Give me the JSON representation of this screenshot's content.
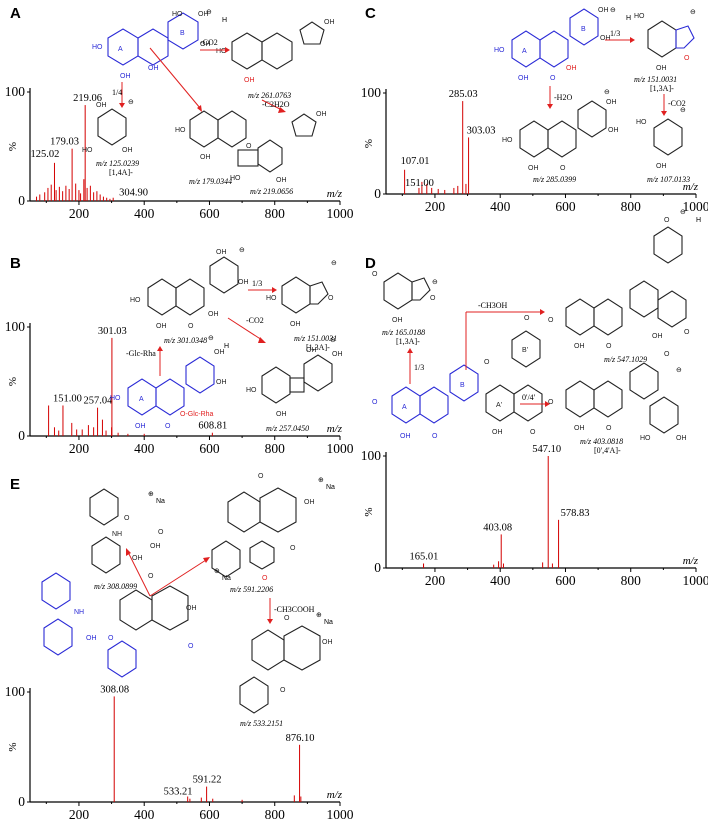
{
  "chart_data": [
    {
      "panel": "A",
      "type": "bar",
      "xlabel": "m/z",
      "ylabel": "%",
      "xlim": [
        50,
        1000
      ],
      "ylim": [
        0,
        100
      ],
      "xticks": [
        200,
        400,
        600,
        800,
        1000
      ],
      "yticks": [
        0,
        100
      ],
      "peaks": [
        {
          "x": 125.02,
          "y": 35,
          "label": "125.02"
        },
        {
          "x": 179.03,
          "y": 48,
          "label": "179.03"
        },
        {
          "x": 219.06,
          "y": 88,
          "label": "219.06"
        },
        {
          "x": 304.9,
          "y": 3,
          "label": "304.90"
        }
      ],
      "noise": [
        [
          70,
          4
        ],
        [
          80,
          6
        ],
        [
          95,
          8
        ],
        [
          105,
          12
        ],
        [
          115,
          15
        ],
        [
          130,
          10
        ],
        [
          140,
          13
        ],
        [
          150,
          9
        ],
        [
          160,
          14
        ],
        [
          170,
          11
        ],
        [
          190,
          16
        ],
        [
          200,
          10
        ],
        [
          205,
          7
        ],
        [
          215,
          20
        ],
        [
          225,
          12
        ],
        [
          235,
          14
        ],
        [
          245,
          8
        ],
        [
          255,
          9
        ],
        [
          265,
          6
        ],
        [
          275,
          4
        ],
        [
          285,
          3
        ],
        [
          295,
          2
        ]
      ],
      "fragments": [
        {
          "mz": "m/z 261.0763",
          "note": ""
        },
        {
          "mz": "m/z 219.0656",
          "note": ""
        },
        {
          "mz": "m/z 179.0344",
          "note": ""
        },
        {
          "mz": "m/z 125.0239",
          "note": "[1,4A]-"
        }
      ],
      "transitions": [
        "-CO2",
        "-C2H2O",
        "1/4"
      ],
      "ring_labels": [
        "A",
        "B"
      ],
      "charge_label": "H"
    },
    {
      "panel": "B",
      "type": "bar",
      "xlabel": "m/z",
      "ylabel": "%",
      "xlim": [
        50,
        1000
      ],
      "ylim": [
        0,
        100
      ],
      "xticks": [
        200,
        400,
        600,
        800,
        1000
      ],
      "yticks": [
        0,
        100
      ],
      "peaks": [
        {
          "x": 151.0,
          "y": 28,
          "label": "151.00"
        },
        {
          "x": 257.04,
          "y": 26,
          "label": "257.04"
        },
        {
          "x": 301.03,
          "y": 90,
          "label": "301.03"
        },
        {
          "x": 608.81,
          "y": 3,
          "label": "608.81"
        }
      ],
      "noise": [
        [
          107,
          28
        ],
        [
          125,
          8
        ],
        [
          138,
          5
        ],
        [
          178,
          12
        ],
        [
          193,
          6
        ],
        [
          210,
          6
        ],
        [
          229,
          10
        ],
        [
          245,
          8
        ],
        [
          272,
          15
        ],
        [
          283,
          5
        ],
        [
          300,
          8
        ],
        [
          320,
          3
        ],
        [
          350,
          2
        ],
        [
          400,
          2
        ]
      ],
      "fragments": [
        {
          "mz": "m/z 301.0348",
          "note": ""
        },
        {
          "mz": "m/z 151.0031",
          "note": "[1,3A]-"
        },
        {
          "mz": "m/z 257.0450",
          "note": ""
        }
      ],
      "transitions": [
        "1/3",
        "-CO2",
        "-Glc-Rha"
      ],
      "substituent": "O-Glc-Rha",
      "ring_labels": [
        "A",
        "B"
      ],
      "charge_label": "H"
    },
    {
      "panel": "C",
      "type": "bar",
      "xlabel": "m/z",
      "ylabel": "%",
      "xlim": [
        50,
        1000
      ],
      "ylim": [
        0,
        100
      ],
      "xticks": [
        200,
        400,
        600,
        800,
        1000
      ],
      "yticks": [
        0,
        100
      ],
      "peaks": [
        {
          "x": 107.01,
          "y": 24,
          "label": "107.01"
        },
        {
          "x": 151.0,
          "y": 6,
          "label": "151.00"
        },
        {
          "x": 285.03,
          "y": 92,
          "label": "285.03"
        },
        {
          "x": 303.03,
          "y": 56,
          "label": "303.03"
        }
      ],
      "noise": [
        [
          160,
          12
        ],
        [
          175,
          10
        ],
        [
          190,
          6
        ],
        [
          210,
          5
        ],
        [
          230,
          4
        ],
        [
          258,
          6
        ],
        [
          270,
          8
        ],
        [
          295,
          10
        ]
      ],
      "fragments": [
        {
          "mz": "m/z 151.0031",
          "note": "[1,3A]-"
        },
        {
          "mz": "m/z 285.0399",
          "note": ""
        },
        {
          "mz": "m/z 107.0133",
          "note": ""
        }
      ],
      "transitions": [
        "1/3",
        "-H2O",
        "-CO2"
      ],
      "ring_labels": [
        "A",
        "B"
      ],
      "charge_label": "H"
    },
    {
      "panel": "D",
      "type": "bar",
      "xlabel": "m/z",
      "ylabel": "%",
      "xlim": [
        50,
        1000
      ],
      "ylim": [
        0,
        100
      ],
      "xticks": [
        200,
        400,
        600,
        800,
        1000
      ],
      "yticks": [
        0,
        100
      ],
      "peaks": [
        {
          "x": 165.01,
          "y": 4,
          "label": "165.01"
        },
        {
          "x": 403.08,
          "y": 30,
          "label": "403.08"
        },
        {
          "x": 547.1,
          "y": 100,
          "label": "547.10"
        },
        {
          "x": 578.83,
          "y": 43,
          "label": "578.83"
        }
      ],
      "noise": [
        [
          165,
          4
        ],
        [
          380,
          3
        ],
        [
          395,
          6
        ],
        [
          410,
          4
        ],
        [
          530,
          5
        ],
        [
          560,
          4
        ]
      ],
      "fragments": [
        {
          "mz": "m/z 165.0188",
          "note": "[1,3A]-"
        },
        {
          "mz": "m/z 547.1029",
          "note": ""
        },
        {
          "mz": "m/z 403.0818",
          "note": "[0',4'A]-"
        }
      ],
      "transitions": [
        "-CH3OH",
        "1/3",
        "0'/4'"
      ],
      "ring_labels": [
        "A",
        "B",
        "A'",
        "B'"
      ],
      "charge_label": "H"
    },
    {
      "panel": "E",
      "type": "bar",
      "xlabel": "m/z",
      "ylabel": "%",
      "xlim": [
        50,
        1000
      ],
      "ylim": [
        0,
        100
      ],
      "xticks": [
        200,
        400,
        600,
        800,
        1000
      ],
      "yticks": [
        0,
        100
      ],
      "peaks": [
        {
          "x": 308.08,
          "y": 96,
          "label": "308.08"
        },
        {
          "x": 533.21,
          "y": 5,
          "label": "533.21"
        },
        {
          "x": 591.22,
          "y": 14,
          "label": "591.22"
        },
        {
          "x": 876.1,
          "y": 52,
          "label": "876.10"
        }
      ],
      "noise": [
        [
          540,
          3
        ],
        [
          575,
          4
        ],
        [
          610,
          3
        ],
        [
          700,
          2
        ],
        [
          860,
          6
        ],
        [
          880,
          5
        ]
      ],
      "fragments": [
        {
          "mz": "m/z 308.0899",
          "note": ""
        },
        {
          "mz": "m/z 591.2206",
          "note": ""
        },
        {
          "mz": "m/z 533.2151",
          "note": ""
        }
      ],
      "transitions": [
        "-CH3COOH"
      ],
      "charge_label": "Na"
    }
  ]
}
